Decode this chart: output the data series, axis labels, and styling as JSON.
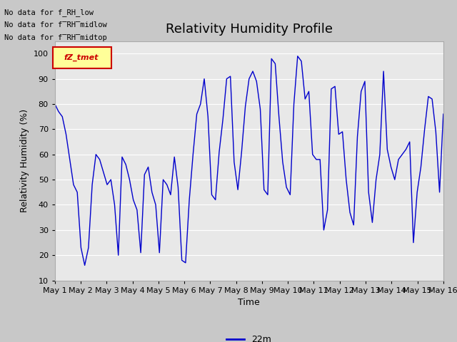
{
  "title": "Relativity Humidity Profile",
  "ylabel": "Relativity Humidity (%)",
  "xlabel": "Time",
  "legend_label": "22m",
  "ylim": [
    10,
    105
  ],
  "yticks": [
    10,
    20,
    30,
    40,
    50,
    60,
    70,
    80,
    90,
    100
  ],
  "x_tick_labels": [
    "May 1",
    "May 2",
    "May 3",
    "May 4",
    "May 5",
    "May 6",
    "May 7",
    "May 8",
    "May 9",
    "May 10",
    "May 11",
    "May 12",
    "May 13",
    "May 14",
    "May 15",
    "May 16"
  ],
  "annotations": [
    "No data for f_RH_low",
    "No data for f̅RH̅midlow",
    "No data for f̅RH̅midtop"
  ],
  "legend_box_label": "fZ_tmet",
  "line_color": "#0000cc",
  "fig_bg_color": "#c8c8c8",
  "plot_bg_color": "#e8e8e8",
  "grid_color": "#ffffff",
  "title_fontsize": 13,
  "axis_fontsize": 9,
  "tick_fontsize": 8,
  "values": [
    80,
    77,
    75,
    68,
    58,
    48,
    45,
    23,
    16,
    23,
    48,
    60,
    58,
    53,
    48,
    50,
    40,
    20,
    59,
    56,
    50,
    42,
    38,
    21,
    52,
    55,
    45,
    40,
    21,
    50,
    48,
    44,
    59,
    47,
    18,
    17,
    42,
    60,
    76,
    80,
    90,
    75,
    44,
    42,
    61,
    74,
    90,
    91,
    57,
    46,
    61,
    79,
    90,
    93,
    89,
    78,
    46,
    44,
    98,
    96,
    75,
    57,
    47,
    44,
    80,
    99,
    97,
    82,
    85,
    60,
    58,
    58,
    30,
    38,
    86,
    87,
    68,
    69,
    50,
    37,
    32,
    67,
    85,
    89,
    45,
    33,
    50,
    60,
    93,
    62,
    55,
    50,
    58,
    60,
    62,
    65,
    25,
    45,
    55,
    70,
    83,
    82,
    69,
    45,
    76
  ]
}
